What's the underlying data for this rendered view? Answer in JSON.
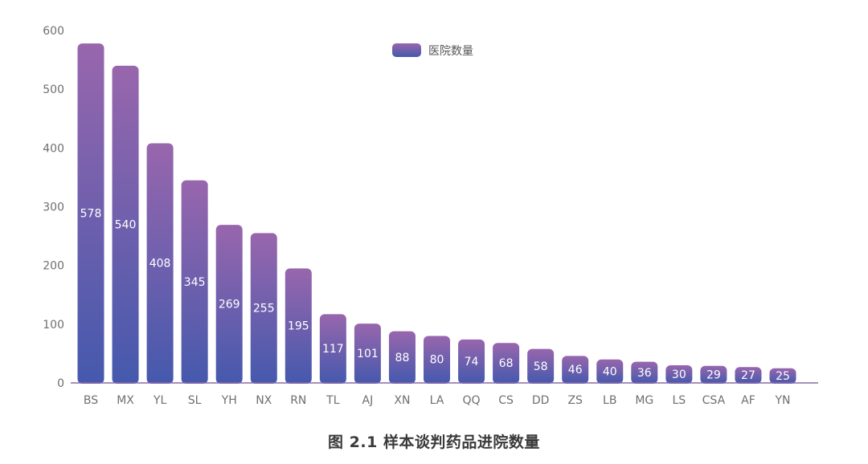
{
  "caption": "图 2.1 样本谈判药品进院数量",
  "colors": {
    "bar_top": "#9866ad",
    "bar_bottom": "#4559ad",
    "axis": "#8a6aa8",
    "text": "#6f6f6f"
  },
  "chart_data": {
    "type": "bar",
    "categories": [
      "BS",
      "MX",
      "YL",
      "SL",
      "YH",
      "NX",
      "RN",
      "TL",
      "AJ",
      "XN",
      "LA",
      "QQ",
      "CS",
      "DD",
      "ZS",
      "LB",
      "MG",
      "LS",
      "CSA",
      "AF",
      "YN"
    ],
    "series": [
      {
        "name": "医院数量",
        "values": [
          578,
          540,
          408,
          345,
          269,
          255,
          195,
          117,
          101,
          88,
          80,
          74,
          68,
          58,
          46,
          40,
          36,
          30,
          29,
          27,
          25
        ]
      }
    ],
    "yticks": [
      0,
      100,
      200,
      300,
      400,
      500,
      600
    ],
    "ylim": [
      0,
      600
    ],
    "grid": false,
    "legend_position": "top-center",
    "data_labels": true
  }
}
